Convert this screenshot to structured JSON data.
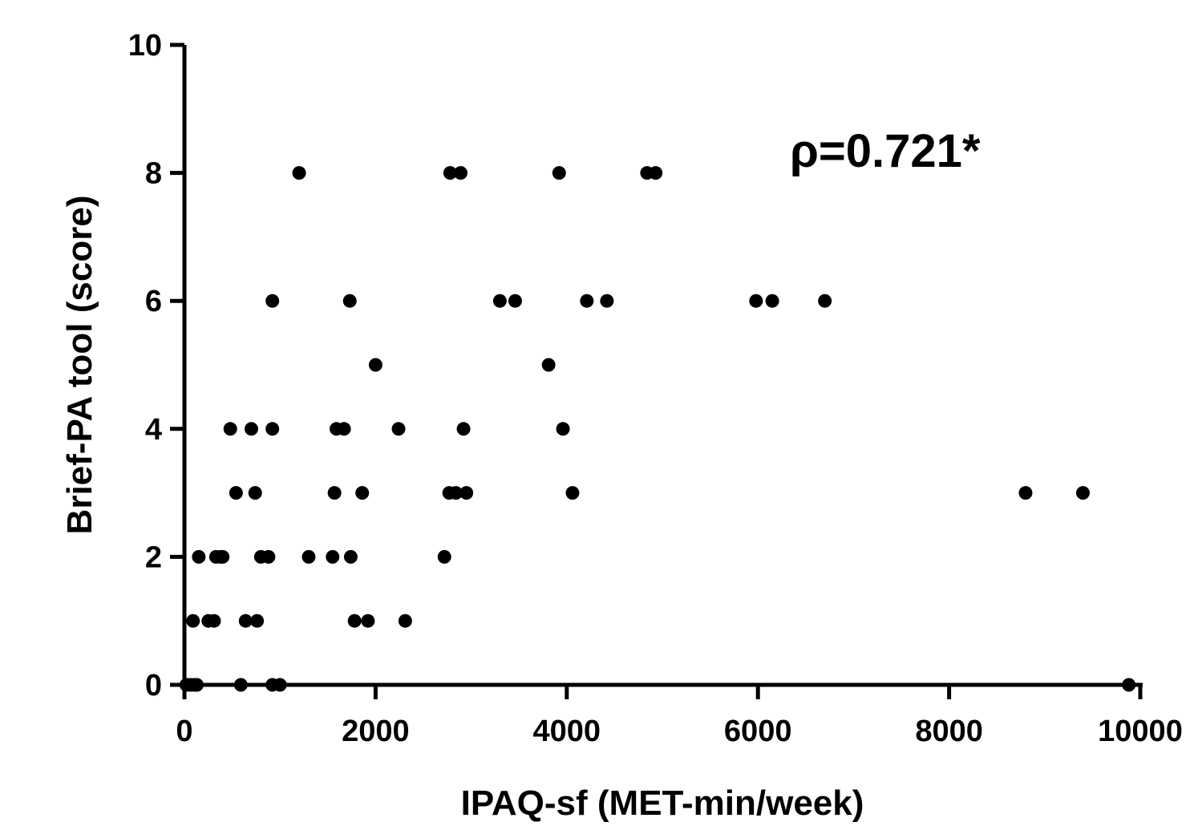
{
  "chart_data": {
    "type": "scatter",
    "title": "",
    "xlabel": "IPAQ-sf (MET-min/week)",
    "ylabel": "Brief-PA tool (score)",
    "xlim": [
      0,
      10000
    ],
    "ylim": [
      0,
      10
    ],
    "x_ticks": [
      "0",
      "2000",
      "4000",
      "6000",
      "8000",
      "10000"
    ],
    "y_ticks": [
      "0",
      "2",
      "4",
      "6",
      "8",
      "10"
    ],
    "annotation": "ρ=0.721*",
    "grid": false,
    "legend": "none",
    "marker_color": "#000000",
    "points": [
      {
        "x": 1200,
        "y": 8
      },
      {
        "x": 2780,
        "y": 8
      },
      {
        "x": 2890,
        "y": 8
      },
      {
        "x": 3920,
        "y": 8
      },
      {
        "x": 4840,
        "y": 8
      },
      {
        "x": 4930,
        "y": 8
      },
      {
        "x": 920,
        "y": 6
      },
      {
        "x": 1730,
        "y": 6
      },
      {
        "x": 3300,
        "y": 6
      },
      {
        "x": 3460,
        "y": 6
      },
      {
        "x": 4210,
        "y": 6
      },
      {
        "x": 4420,
        "y": 6
      },
      {
        "x": 5980,
        "y": 6
      },
      {
        "x": 6150,
        "y": 6
      },
      {
        "x": 6700,
        "y": 6
      },
      {
        "x": 2000,
        "y": 5
      },
      {
        "x": 3810,
        "y": 5
      },
      {
        "x": 480,
        "y": 4
      },
      {
        "x": 700,
        "y": 4
      },
      {
        "x": 920,
        "y": 4
      },
      {
        "x": 1590,
        "y": 4
      },
      {
        "x": 1670,
        "y": 4
      },
      {
        "x": 2240,
        "y": 4
      },
      {
        "x": 2920,
        "y": 4
      },
      {
        "x": 3960,
        "y": 4
      },
      {
        "x": 540,
        "y": 3
      },
      {
        "x": 740,
        "y": 3
      },
      {
        "x": 1570,
        "y": 3
      },
      {
        "x": 1860,
        "y": 3
      },
      {
        "x": 2770,
        "y": 3
      },
      {
        "x": 2840,
        "y": 3
      },
      {
        "x": 2950,
        "y": 3
      },
      {
        "x": 4060,
        "y": 3
      },
      {
        "x": 8800,
        "y": 3
      },
      {
        "x": 9400,
        "y": 3
      },
      {
        "x": 150,
        "y": 2
      },
      {
        "x": 330,
        "y": 2
      },
      {
        "x": 380,
        "y": 2
      },
      {
        "x": 400,
        "y": 2
      },
      {
        "x": 800,
        "y": 2
      },
      {
        "x": 880,
        "y": 2
      },
      {
        "x": 1300,
        "y": 2
      },
      {
        "x": 1550,
        "y": 2
      },
      {
        "x": 1740,
        "y": 2
      },
      {
        "x": 2720,
        "y": 2
      },
      {
        "x": 90,
        "y": 1
      },
      {
        "x": 250,
        "y": 1
      },
      {
        "x": 310,
        "y": 1
      },
      {
        "x": 640,
        "y": 1
      },
      {
        "x": 760,
        "y": 1
      },
      {
        "x": 1780,
        "y": 1
      },
      {
        "x": 1920,
        "y": 1
      },
      {
        "x": 2310,
        "y": 1
      },
      {
        "x": 20,
        "y": 0
      },
      {
        "x": 60,
        "y": 0
      },
      {
        "x": 100,
        "y": 0
      },
      {
        "x": 130,
        "y": 0
      },
      {
        "x": 590,
        "y": 0
      },
      {
        "x": 920,
        "y": 0
      },
      {
        "x": 1000,
        "y": 0
      },
      {
        "x": 9880,
        "y": 0
      }
    ]
  }
}
